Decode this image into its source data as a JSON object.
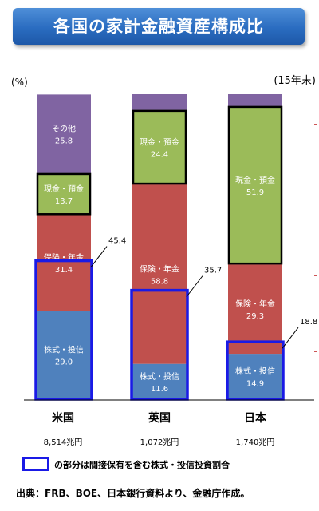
{
  "title": "各国の家計金融資産構成比",
  "unit_left": "(%)",
  "unit_right": "(15年末)",
  "legend_text": "の部分は間接保有を含む株式・投信投資割合",
  "source": "出典：FRB、BOE、日本銀行資料より、金融庁作成。",
  "colors": {
    "stock": "#4f81bd",
    "insurance": "#c0504d",
    "cash": "#9bbb59",
    "other": "#8064a2",
    "highlight": "#1a1ae6"
  },
  "chart_data": {
    "type": "bar",
    "stacked": true,
    "categories": [
      "米国",
      "英国",
      "日本"
    ],
    "totals": [
      "8,514兆円",
      "1,072兆円",
      "1,740兆円"
    ],
    "series": [
      {
        "name": "株式・投信",
        "color": "#4f81bd",
        "values": [
          29.0,
          11.6,
          14.9
        ],
        "labels": [
          "29.0",
          "11.6",
          "14.9"
        ]
      },
      {
        "name": "保険・年金",
        "color": "#c0504d",
        "values": [
          31.4,
          58.8,
          29.3
        ],
        "labels": [
          "31.4",
          "58.8",
          "29.3"
        ]
      },
      {
        "name": "現金・預金",
        "color": "#9bbb59",
        "values": [
          13.7,
          24.4,
          51.9
        ],
        "labels": [
          "13.7",
          "24.4",
          "51.9"
        ]
      },
      {
        "name": "その他",
        "color": "#8064a2",
        "values": [
          25.8,
          5.2,
          3.9
        ],
        "labels": [
          "25.8",
          "",
          ""
        ]
      }
    ],
    "label_series_shown": [
      [
        true,
        true,
        true,
        true
      ],
      [
        true,
        true,
        true,
        false
      ],
      [
        true,
        true,
        true,
        false
      ]
    ],
    "indirect_stock_share": [
      45.4,
      35.7,
      18.8
    ],
    "indirect_stock_labels": [
      "45.4",
      "35.7",
      "18.8"
    ],
    "ylim": [
      0,
      100
    ]
  }
}
